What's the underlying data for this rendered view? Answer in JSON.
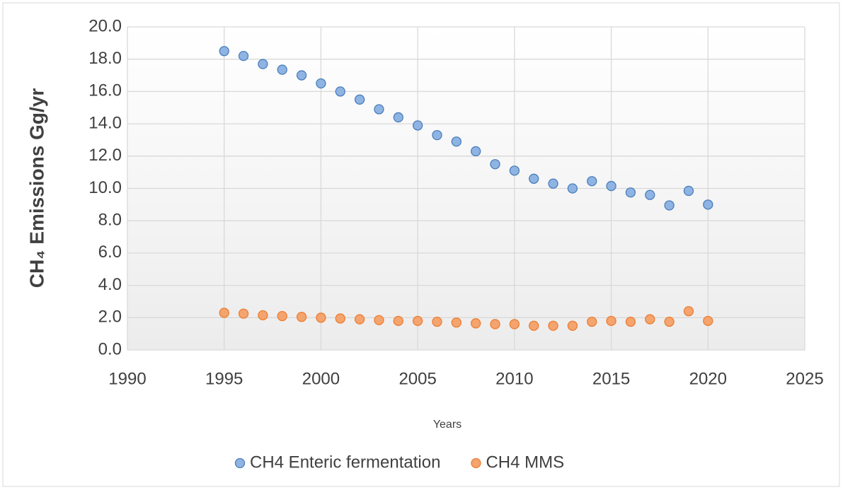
{
  "chart_data": {
    "type": "scatter",
    "xlabel": "Years",
    "ylabel": "CH₄ Emissions Gg/yr",
    "x": [
      1995,
      1996,
      1997,
      1998,
      1999,
      2000,
      2001,
      2002,
      2003,
      2004,
      2005,
      2006,
      2007,
      2008,
      2009,
      2010,
      2011,
      2012,
      2013,
      2014,
      2015,
      2016,
      2017,
      2018,
      2019,
      2020
    ],
    "series": [
      {
        "name": "CH4 Enteric fermentation",
        "color": "#8fb4e3",
        "edge": "#4a7ebb",
        "values": [
          18.5,
          18.2,
          17.7,
          17.35,
          17.0,
          16.5,
          16.0,
          15.5,
          14.9,
          14.4,
          13.9,
          13.3,
          12.9,
          12.3,
          11.5,
          11.1,
          10.6,
          10.3,
          10.0,
          10.45,
          10.15,
          9.75,
          9.6,
          8.95,
          9.85,
          9.0
        ]
      },
      {
        "name": "CH4 MMS",
        "color": "#f4a46f",
        "edge": "#ed7d31",
        "values": [
          2.3,
          2.25,
          2.15,
          2.1,
          2.05,
          2.0,
          1.95,
          1.9,
          1.85,
          1.8,
          1.8,
          1.75,
          1.7,
          1.65,
          1.6,
          1.6,
          1.5,
          1.5,
          1.5,
          1.75,
          1.8,
          1.75,
          1.9,
          1.75,
          2.4,
          1.8
        ]
      }
    ],
    "xlim": [
      1990,
      2025
    ],
    "xticks": [
      1990,
      1995,
      2000,
      2005,
      2010,
      2015,
      2020,
      2025
    ],
    "ylim": [
      0,
      20
    ],
    "yticks": [
      {
        "value": 0,
        "label": "0.0"
      },
      {
        "value": 2,
        "label": "2.0"
      },
      {
        "value": 4,
        "label": "4.0"
      },
      {
        "value": 6,
        "label": "6.0"
      },
      {
        "value": 8,
        "label": "8.0"
      },
      {
        "value": 10,
        "label": "10.0"
      },
      {
        "value": 12,
        "label": "12.0"
      },
      {
        "value": 14,
        "label": "14.0"
      },
      {
        "value": 16,
        "label": "16.0"
      },
      {
        "value": 18,
        "label": "18.0"
      },
      {
        "value": 20,
        "label": "20.0"
      }
    ],
    "grid": true,
    "legend": "bottom"
  }
}
